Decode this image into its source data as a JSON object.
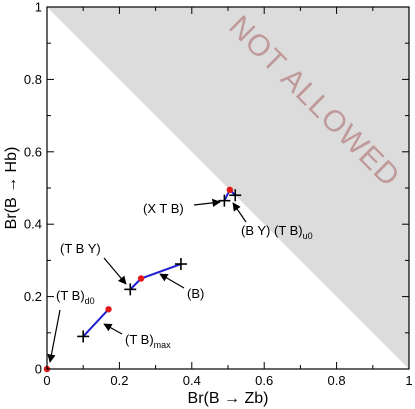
{
  "chart_data": {
    "type": "scatter",
    "title": "",
    "xlabel": "Br(B → Zb)",
    "ylabel": "Br(B → Hb)",
    "xlim": [
      0,
      1
    ],
    "ylim": [
      0,
      1
    ],
    "x_ticks": [
      "0",
      "0.2",
      "0.4",
      "0.6",
      "0.8",
      "1"
    ],
    "y_ticks": [
      "0",
      "0.2",
      "0.4",
      "0.6",
      "0.8",
      "1"
    ],
    "x_tick_values": [
      0,
      0.2,
      0.4,
      0.6,
      0.8,
      1
    ],
    "y_tick_values": [
      0,
      0.2,
      0.4,
      0.6,
      0.8,
      1
    ],
    "grid": false,
    "excluded_region": {
      "label": "NOT ALLOWED",
      "condition": "x + y > 1",
      "color": "#dcdcdc"
    },
    "colors": {
      "segment": "#1f1fd0",
      "dot": "#e01818",
      "cross": "#000000"
    },
    "segments": [
      {
        "name": "(T B)max",
        "points": [
          [
            0.1,
            0.09
          ],
          [
            0.17,
            0.165
          ]
        ],
        "cross_at": 0,
        "dot_at": 1
      },
      {
        "name": "(T B Y) / (B)",
        "points": [
          [
            0.23,
            0.22
          ],
          [
            0.26,
            0.25
          ],
          [
            0.37,
            0.29
          ]
        ],
        "cross_at": [
          0,
          2
        ],
        "dot_at": 1
      },
      {
        "name": "(X T B) / (B Y) (T B)u0",
        "points": [
          [
            0.49,
            0.465
          ],
          [
            0.505,
            0.495
          ],
          [
            0.52,
            0.48
          ]
        ],
        "cross_at": [
          0,
          2
        ],
        "dot_at": 1
      }
    ],
    "points": [
      {
        "name": "(T B)d0",
        "x": 0,
        "y": 0,
        "marker": "dot"
      }
    ],
    "annotations": [
      {
        "id": "tb-d0",
        "text": "(T B)",
        "sub": "d0"
      },
      {
        "id": "tb-max",
        "text": "(T B)",
        "sub": "max"
      },
      {
        "id": "tby",
        "text": "(T B Y)",
        "sub": ""
      },
      {
        "id": "b",
        "text": "(B)",
        "sub": ""
      },
      {
        "id": "xtb",
        "text": "(X T B)",
        "sub": ""
      },
      {
        "id": "by-tb-u0",
        "text": "(B Y)  (T B)",
        "sub": "u0"
      }
    ]
  }
}
